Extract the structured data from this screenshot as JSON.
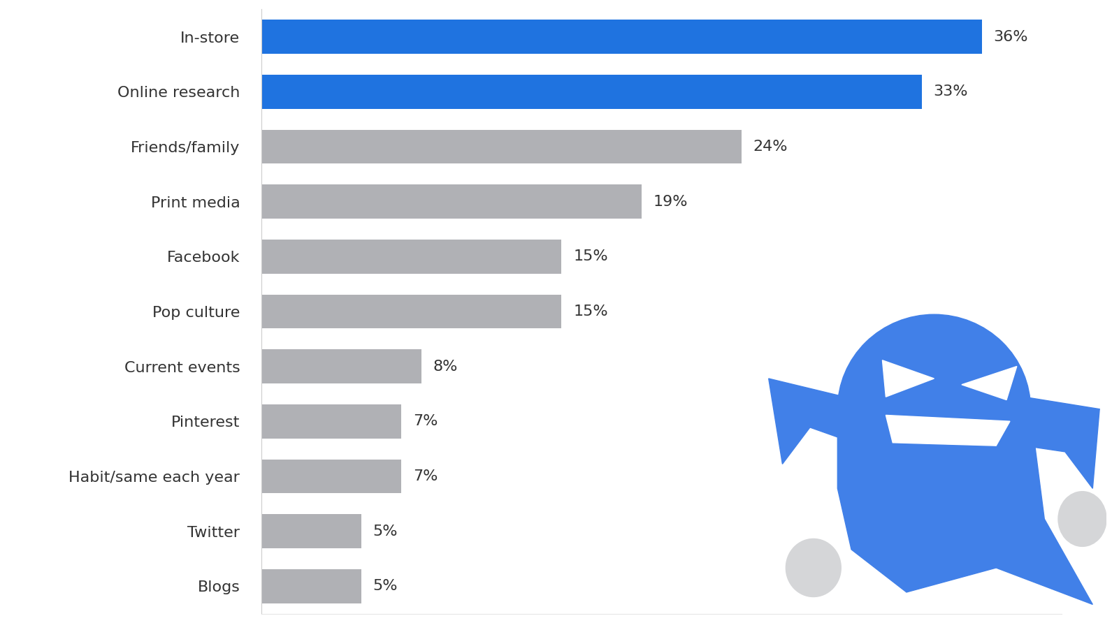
{
  "chart_data": {
    "type": "bar",
    "orientation": "horizontal",
    "categories": [
      "In-store",
      "Online research",
      "Friends/family",
      "Print media",
      "Facebook",
      "Pop culture",
      "Current events",
      "Pinterest",
      "Habit/same each year",
      "Twitter",
      "Blogs"
    ],
    "values": [
      36,
      33,
      24,
      19,
      15,
      15,
      8,
      7,
      7,
      5,
      5
    ],
    "value_labels": [
      "36%",
      "33%",
      "24%",
      "19%",
      "15%",
      "15%",
      "8%",
      "7%",
      "7%",
      "5%",
      "5%"
    ],
    "colors": [
      "#1f73e0",
      "#1f73e0",
      "#b0b1b5",
      "#b0b1b5",
      "#b0b1b5",
      "#b0b1b5",
      "#b0b1b5",
      "#b0b1b5",
      "#b0b1b5",
      "#b0b1b5",
      "#b0b1b5"
    ],
    "xlim": [
      0,
      40
    ],
    "xticks": [],
    "data_labels": true,
    "tick_labels": "y",
    "grid": false
  }
}
